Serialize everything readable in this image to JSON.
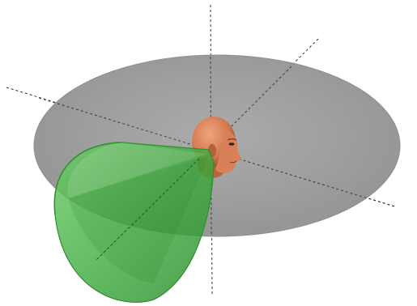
{
  "scene": {
    "objects": [
      "horizontal-disc",
      "listening-cone",
      "human-head",
      "reference-axes"
    ],
    "colors": {
      "disc": "#9a9a9a",
      "disc_edge": "#8a8a8a",
      "cone_fill": "#3fae3f",
      "cone_edge": "#2f8f2f",
      "skin": "#d9825a",
      "skin_shadow": "#b5603c",
      "axis": "#333333"
    }
  }
}
